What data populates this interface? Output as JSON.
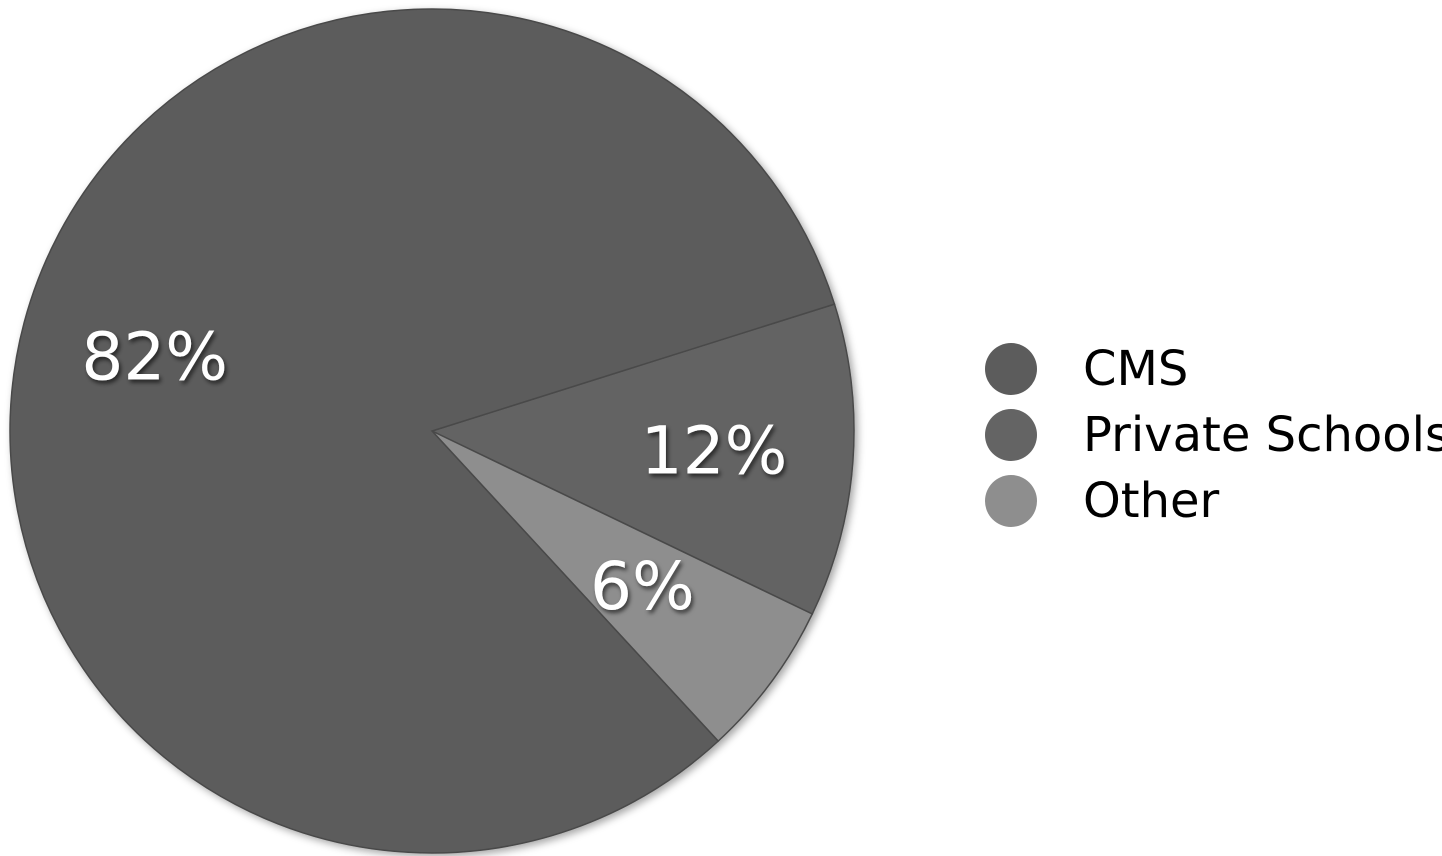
{
  "chart_data": {
    "type": "pie",
    "slices": [
      {
        "name": "CMS",
        "value": 82,
        "label": "82%",
        "color": "#5c5c5c"
      },
      {
        "name": "Private Schools",
        "value": 12,
        "label": "12%",
        "color": "#646464"
      },
      {
        "name": "Other",
        "value": 6,
        "label": "6%",
        "color": "#8e8e8e"
      }
    ],
    "legend": {
      "position": "right",
      "entries": [
        "CMS",
        "Private Schools",
        "Other"
      ]
    }
  }
}
